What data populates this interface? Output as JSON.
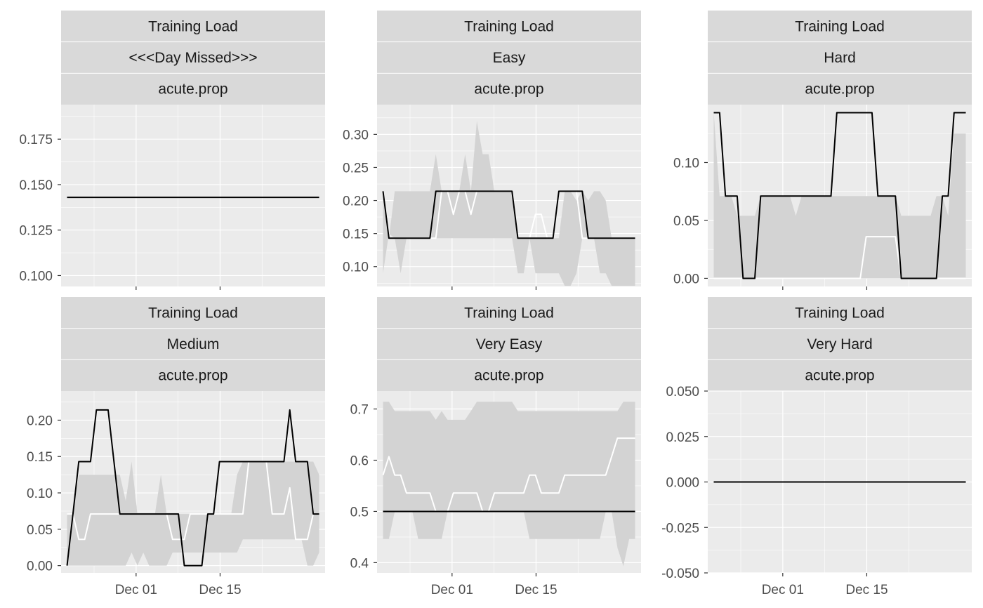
{
  "chart_data": {
    "type": "line",
    "x": [
      "Nov 19",
      "Nov 20",
      "Nov 21",
      "Nov 22",
      "Nov 23",
      "Nov 24",
      "Nov 25",
      "Nov 26",
      "Nov 27",
      "Nov 28",
      "Nov 29",
      "Nov 30",
      "Dec 01",
      "Dec 02",
      "Dec 03",
      "Dec 04",
      "Dec 05",
      "Dec 06",
      "Dec 07",
      "Dec 08",
      "Dec 09",
      "Dec 10",
      "Dec 11",
      "Dec 12",
      "Dec 13",
      "Dec 14",
      "Dec 15",
      "Dec 16",
      "Dec 17",
      "Dec 18",
      "Dec 19",
      "Dec 20",
      "Dec 21",
      "Dec 22",
      "Dec 23",
      "Dec 24",
      "Dec 25",
      "Dec 26",
      "Dec 27",
      "Dec 28",
      "Dec 29",
      "Dec 30",
      "Dec 31",
      "Jan 01"
    ],
    "x_ticks": [
      "Dec 01",
      "Dec 15"
    ],
    "panels": [
      {
        "strips": [
          "Training Load",
          "<<<Day Missed>>>",
          "acute.prop"
        ],
        "y_ticks": [
          "0.100",
          "0.125",
          "0.150",
          "0.175"
        ],
        "ylim": [
          0.094,
          0.194
        ],
        "band_lower": [],
        "band_upper": [],
        "white_line": [],
        "black_line": [
          0.143,
          0.143,
          0.143,
          0.143,
          0.143,
          0.143,
          0.143,
          0.143,
          0.143,
          0.143,
          0.143,
          0.143,
          0.143,
          0.143,
          0.143,
          0.143,
          0.143,
          0.143,
          0.143,
          0.143,
          0.143,
          0.143,
          0.143,
          0.143,
          0.143,
          0.143,
          0.143,
          0.143,
          0.143,
          0.143,
          0.143,
          0.143,
          0.143,
          0.143,
          0.143,
          0.143,
          0.143,
          0.143,
          0.143,
          0.143,
          0.143,
          0.143,
          0.143,
          0.143
        ]
      },
      {
        "strips": [
          "Training Load",
          "Easy",
          "acute.prop"
        ],
        "y_ticks": [
          "0.10",
          "0.15",
          "0.20",
          "0.25",
          "0.30"
        ],
        "ylim": [
          0.07,
          0.345
        ],
        "band_lower": [
          0.09,
          0.15,
          0.143,
          0.09,
          0.143,
          0.143,
          0.143,
          0.143,
          0.143,
          0.143,
          0.143,
          0.143,
          0.143,
          0.143,
          0.143,
          0.143,
          0.143,
          0.143,
          0.143,
          0.143,
          0.143,
          0.143,
          0.143,
          0.09,
          0.09,
          0.143,
          0.09,
          0.09,
          0.09,
          0.09,
          0.09,
          0.071,
          0.071,
          0.09,
          0.143,
          0.143,
          0.143,
          0.09,
          0.09,
          0.071,
          0.071,
          0.071,
          0.071,
          0.071
        ],
        "band_upper": [
          0.214,
          0.143,
          0.214,
          0.214,
          0.214,
          0.214,
          0.214,
          0.214,
          0.214,
          0.27,
          0.214,
          0.214,
          0.214,
          0.214,
          0.27,
          0.214,
          0.32,
          0.27,
          0.27,
          0.214,
          0.214,
          0.214,
          0.214,
          0.143,
          0.143,
          0.143,
          0.143,
          0.143,
          0.143,
          0.143,
          0.143,
          0.214,
          0.214,
          0.2,
          0.214,
          0.2,
          0.214,
          0.214,
          0.2,
          0.143,
          0.143,
          0.143,
          0.143,
          0.143
        ],
        "white_line": [
          0.214,
          0.143,
          0.143,
          0.143,
          0.143,
          0.143,
          0.143,
          0.143,
          0.143,
          0.143,
          0.214,
          0.214,
          0.179,
          0.214,
          0.214,
          0.179,
          0.214,
          0.214,
          0.214,
          0.214,
          0.214,
          0.214,
          0.214,
          0.143,
          0.143,
          0.143,
          0.179,
          0.179,
          0.143,
          0.143,
          0.214,
          0.214,
          0.214,
          0.214,
          0.143,
          0.143,
          0.143,
          0.143,
          0.143,
          0.143,
          0.143,
          0.143,
          0.143,
          0.143
        ],
        "black_line": [
          0.214,
          0.143,
          0.143,
          0.143,
          0.143,
          0.143,
          0.143,
          0.143,
          0.143,
          0.214,
          0.214,
          0.214,
          0.214,
          0.214,
          0.214,
          0.214,
          0.214,
          0.214,
          0.214,
          0.214,
          0.214,
          0.214,
          0.214,
          0.143,
          0.143,
          0.143,
          0.143,
          0.143,
          0.143,
          0.143,
          0.214,
          0.214,
          0.214,
          0.214,
          0.214,
          0.143,
          0.143,
          0.143,
          0.143,
          0.143,
          0.143,
          0.143,
          0.143,
          0.143
        ]
      },
      {
        "strips": [
          "Training Load",
          "Hard",
          "acute.prop"
        ],
        "y_ticks": [
          "0.00",
          "0.05",
          "0.10"
        ],
        "ylim": [
          -0.007,
          0.15
        ],
        "band_lower": [
          0,
          0,
          0,
          0,
          0,
          0,
          0,
          0,
          0,
          0,
          0,
          0,
          0,
          0,
          0,
          0,
          0,
          0,
          0,
          0,
          0,
          0,
          0,
          0,
          0,
          0,
          0,
          0,
          0,
          0,
          0,
          0,
          0,
          0,
          0,
          0,
          0,
          0,
          0,
          0,
          0,
          0,
          0,
          0
        ],
        "band_upper": [
          0.143,
          0.071,
          0.071,
          0.071,
          0.054,
          0.054,
          0.054,
          0.054,
          0.071,
          0.071,
          0.071,
          0.071,
          0.071,
          0.071,
          0.054,
          0.071,
          0.071,
          0.071,
          0.071,
          0.071,
          0.071,
          0.071,
          0.071,
          0.071,
          0.071,
          0.071,
          0.071,
          0.071,
          0.071,
          0.071,
          0.071,
          0.071,
          0.054,
          0.054,
          0.054,
          0.054,
          0.054,
          0.054,
          0.071,
          0.071,
          0.054,
          0.125,
          0.125,
          0.125
        ],
        "white_line": [
          0,
          0,
          0,
          0,
          0,
          0,
          0,
          0,
          0,
          0,
          0,
          0,
          0,
          0,
          0,
          0,
          0,
          0,
          0,
          0,
          0,
          0,
          0,
          0,
          0,
          0,
          0.036,
          0.036,
          0.036,
          0.036,
          0.036,
          0.036,
          0,
          0,
          0,
          0,
          0,
          0,
          0,
          0,
          0,
          0,
          0,
          0
        ],
        "black_line": [
          0.143,
          0.143,
          0.071,
          0.071,
          0.071,
          0,
          0,
          0,
          0.071,
          0.071,
          0.071,
          0.071,
          0.071,
          0.071,
          0.071,
          0.071,
          0.071,
          0.071,
          0.071,
          0.071,
          0.071,
          0.143,
          0.143,
          0.143,
          0.143,
          0.143,
          0.143,
          0.143,
          0.071,
          0.071,
          0.071,
          0.071,
          0,
          0,
          0,
          0,
          0,
          0,
          0,
          0.071,
          0.071,
          0.143,
          0.143,
          0.143
        ]
      },
      {
        "strips": [
          "Training Load",
          "Medium",
          "acute.prop"
        ],
        "y_ticks": [
          "0.00",
          "0.05",
          "0.10",
          "0.15",
          "0.20"
        ],
        "ylim": [
          -0.01,
          0.24
        ],
        "band_lower": [
          0,
          0,
          0,
          0,
          0,
          0,
          0,
          0,
          0,
          0,
          0,
          0.018,
          0,
          0.018,
          0,
          0,
          0,
          0,
          0.018,
          0.018,
          0.018,
          0.018,
          0.018,
          0.018,
          0.018,
          0.018,
          0.018,
          0.018,
          0.018,
          0.018,
          0.036,
          0.036,
          0.036,
          0.036,
          0.036,
          0.036,
          0.036,
          0.036,
          0.036,
          0.036,
          0.036,
          0,
          0,
          0.018
        ],
        "band_upper": [
          0.071,
          0.071,
          0.125,
          0.125,
          0.125,
          0.125,
          0.125,
          0.125,
          0.125,
          0.125,
          0.089,
          0.143,
          0.071,
          0.071,
          0.071,
          0.071,
          0.125,
          0.071,
          0.071,
          0.071,
          0.071,
          0.071,
          0.071,
          0.071,
          0.071,
          0.071,
          0.071,
          0.071,
          0.071,
          0.125,
          0.143,
          0.143,
          0.143,
          0.143,
          0.143,
          0.143,
          0.143,
          0.143,
          0.143,
          0.143,
          0.143,
          0.143,
          0.143,
          0.125
        ],
        "white_line": [
          0.071,
          0.071,
          0.036,
          0.036,
          0.071,
          0.071,
          0.071,
          0.071,
          0.071,
          0.071,
          0.071,
          0.071,
          0.071,
          0.071,
          0.071,
          0.071,
          0.071,
          0.071,
          0.036,
          0.036,
          0.036,
          0.071,
          0.071,
          0.071,
          0.071,
          0.071,
          0.071,
          0.071,
          0.071,
          0.071,
          0.071,
          0.143,
          0.143,
          0.143,
          0.143,
          0.071,
          0.071,
          0.071,
          0.107,
          0.036,
          0.036,
          0.036,
          0.071,
          0.071
        ],
        "black_line": [
          0,
          0.071,
          0.143,
          0.143,
          0.143,
          0.214,
          0.214,
          0.214,
          0.143,
          0.071,
          0.071,
          0.071,
          0.071,
          0.071,
          0.071,
          0.071,
          0.071,
          0.071,
          0.071,
          0.071,
          0,
          0,
          0,
          0,
          0.071,
          0.071,
          0.143,
          0.143,
          0.143,
          0.143,
          0.143,
          0.143,
          0.143,
          0.143,
          0.143,
          0.143,
          0.143,
          0.143,
          0.214,
          0.143,
          0.143,
          0.143,
          0.071,
          0.071
        ]
      },
      {
        "strips": [
          "Training Load",
          "Very Easy",
          "acute.prop"
        ],
        "y_ticks": [
          "0.4",
          "0.5",
          "0.6",
          "0.7"
        ],
        "ylim": [
          0.38,
          0.735
        ],
        "band_lower": [
          0.446,
          0.446,
          0.5,
          0.5,
          0.5,
          0.5,
          0.446,
          0.446,
          0.446,
          0.446,
          0.446,
          0.5,
          0.5,
          0.5,
          0.5,
          0.5,
          0.5,
          0.5,
          0.5,
          0.5,
          0.5,
          0.5,
          0.5,
          0.5,
          0.5,
          0.446,
          0.446,
          0.446,
          0.446,
          0.446,
          0.446,
          0.446,
          0.446,
          0.446,
          0.446,
          0.446,
          0.446,
          0.446,
          0.5,
          0.5,
          0.429,
          0.393,
          0.446,
          0.446
        ],
        "band_upper": [
          0.714,
          0.714,
          0.696,
          0.696,
          0.696,
          0.696,
          0.696,
          0.696,
          0.696,
          0.679,
          0.696,
          0.679,
          0.679,
          0.679,
          0.679,
          0.696,
          0.714,
          0.714,
          0.714,
          0.714,
          0.714,
          0.714,
          0.714,
          0.696,
          0.696,
          0.696,
          0.696,
          0.696,
          0.696,
          0.696,
          0.696,
          0.696,
          0.696,
          0.696,
          0.696,
          0.696,
          0.696,
          0.696,
          0.696,
          0.696,
          0.696,
          0.714,
          0.714,
          0.714
        ],
        "white_line": [
          0.571,
          0.607,
          0.571,
          0.571,
          0.536,
          0.536,
          0.536,
          0.536,
          0.536,
          0.5,
          0.5,
          0.5,
          0.536,
          0.536,
          0.536,
          0.536,
          0.536,
          0.5,
          0.5,
          0.536,
          0.536,
          0.536,
          0.536,
          0.536,
          0.536,
          0.571,
          0.571,
          0.536,
          0.536,
          0.536,
          0.536,
          0.571,
          0.571,
          0.571,
          0.571,
          0.571,
          0.571,
          0.571,
          0.571,
          0.607,
          0.643,
          0.643,
          0.643,
          0.643
        ],
        "black_line": [
          0.5,
          0.5,
          0.5,
          0.5,
          0.5,
          0.5,
          0.5,
          0.5,
          0.5,
          0.5,
          0.5,
          0.5,
          0.5,
          0.5,
          0.5,
          0.5,
          0.5,
          0.5,
          0.5,
          0.5,
          0.5,
          0.5,
          0.5,
          0.5,
          0.5,
          0.5,
          0.5,
          0.5,
          0.5,
          0.5,
          0.5,
          0.5,
          0.5,
          0.5,
          0.5,
          0.5,
          0.5,
          0.5,
          0.5,
          0.5,
          0.5,
          0.5,
          0.5,
          0.5
        ]
      },
      {
        "strips": [
          "Training Load",
          "Very Hard",
          "acute.prop"
        ],
        "y_ticks": [
          "-0.050",
          "-0.025",
          "0.000",
          "0.025",
          "0.050"
        ],
        "ylim": [
          -0.05,
          0.05
        ],
        "band_lower": [],
        "band_upper": [],
        "white_line": [],
        "black_line": [
          0,
          0,
          0,
          0,
          0,
          0,
          0,
          0,
          0,
          0,
          0,
          0,
          0,
          0,
          0,
          0,
          0,
          0,
          0,
          0,
          0,
          0,
          0,
          0,
          0,
          0,
          0,
          0,
          0,
          0,
          0,
          0,
          0,
          0,
          0,
          0,
          0,
          0,
          0,
          0,
          0,
          0,
          0,
          0
        ]
      }
    ],
    "colors": {
      "panel_background": "#ebebeb",
      "grid": "#ffffff",
      "strip_background": "#d9d9d9",
      "band": "#d3d3d3",
      "white_line": "#ffffff",
      "black_line": "#000000",
      "tick_text": "#4d4d4d",
      "strip_text": "#1a1a1a"
    },
    "grid": true,
    "legend": "none"
  }
}
